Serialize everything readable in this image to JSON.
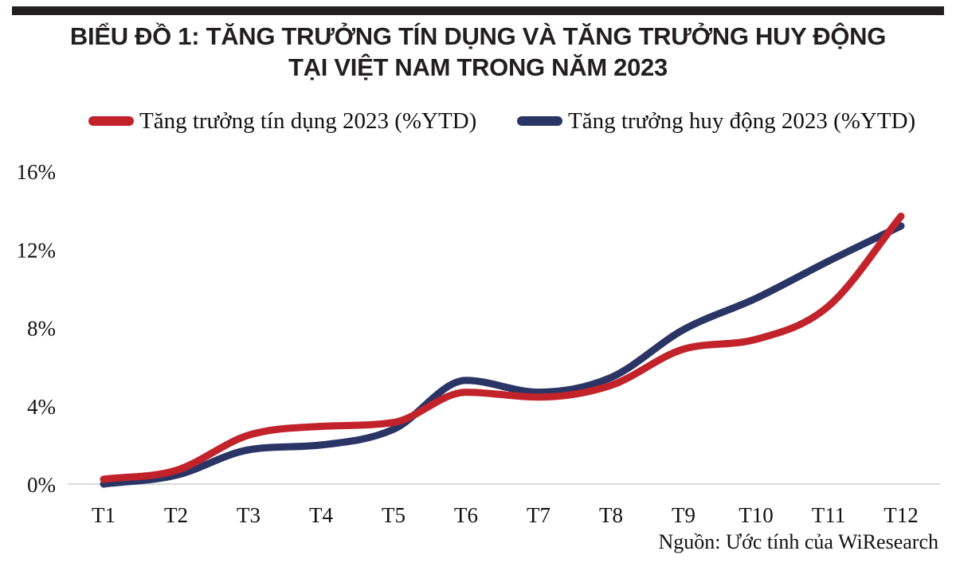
{
  "page": {
    "top_bar_color": "#231f20",
    "background": "#ffffff"
  },
  "title": {
    "line1": "BIỂU ĐỒ 1: TĂNG TRƯỞNG TÍN DỤNG VÀ TĂNG TRƯỞNG HUY ĐỘNG",
    "line2": "TẠI VIỆT NAM TRONG NĂM 2023"
  },
  "source_note": "Nguồn: Ước tính của WiResearch",
  "chart_data": {
    "type": "line",
    "title": "BIỂU ĐỒ 1: TĂNG TRƯỞNG TÍN DỤNG VÀ TĂNG TRƯỞNG HUY ĐỘNG TẠI VIỆT NAM TRONG NĂM 2023",
    "categories": [
      "T1",
      "T2",
      "T3",
      "T4",
      "T5",
      "T6",
      "T7",
      "T8",
      "T9",
      "T10",
      "T11",
      "T12"
    ],
    "series": [
      {
        "name": "Tăng trưởng tín dụng 2023 (%YTD)",
        "color": "#c2232a",
        "values": [
          0.25,
          0.7,
          2.5,
          2.95,
          3.15,
          4.7,
          4.45,
          5.05,
          6.9,
          7.4,
          9.1,
          13.7
        ]
      },
      {
        "name": "Tăng trưởng huy động 2023 (%YTD)",
        "color": "#2a3566",
        "values": [
          0.0,
          0.45,
          1.75,
          2.0,
          2.8,
          5.3,
          4.7,
          5.45,
          7.9,
          9.5,
          11.4,
          13.2
        ]
      }
    ],
    "y_tick_labels": [
      "0%",
      "4%",
      "8%",
      "12%",
      "16%"
    ],
    "ylim": [
      0,
      16
    ],
    "unit": "%YTD",
    "grid": false,
    "legend_position": "top",
    "axis_color": "#d9d9d9",
    "tick_label_color": "#111111"
  }
}
